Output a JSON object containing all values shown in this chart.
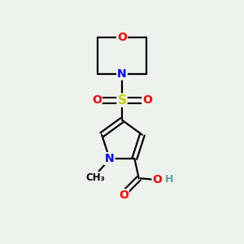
{
  "background_color": "#edf2ed",
  "colors": {
    "N": "#0000ff",
    "O": "#ff0000",
    "S": "#cccc00",
    "C": "#000000",
    "H": "#5f9ea0"
  },
  "figsize": [
    3.0,
    3.0
  ],
  "dpi": 100
}
